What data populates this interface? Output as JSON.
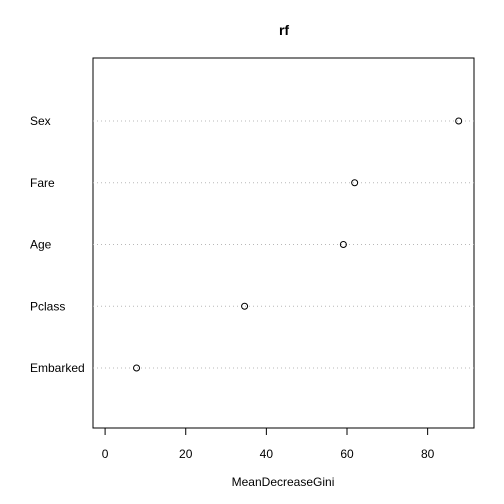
{
  "chart_data": {
    "type": "scatter",
    "title": "rf",
    "xlabel": "MeanDecreaseGini",
    "ylabel": "",
    "categories": [
      "Sex",
      "Fare",
      "Age",
      "Pclass",
      "Embarked"
    ],
    "values": [
      87.7,
      61.9,
      59.1,
      34.6,
      7.8
    ],
    "xlim": [
      -3,
      91.5
    ],
    "xticks": [
      0,
      20,
      40,
      60,
      80
    ],
    "grid": "dotted horizontal guide lines",
    "legend": "none"
  }
}
